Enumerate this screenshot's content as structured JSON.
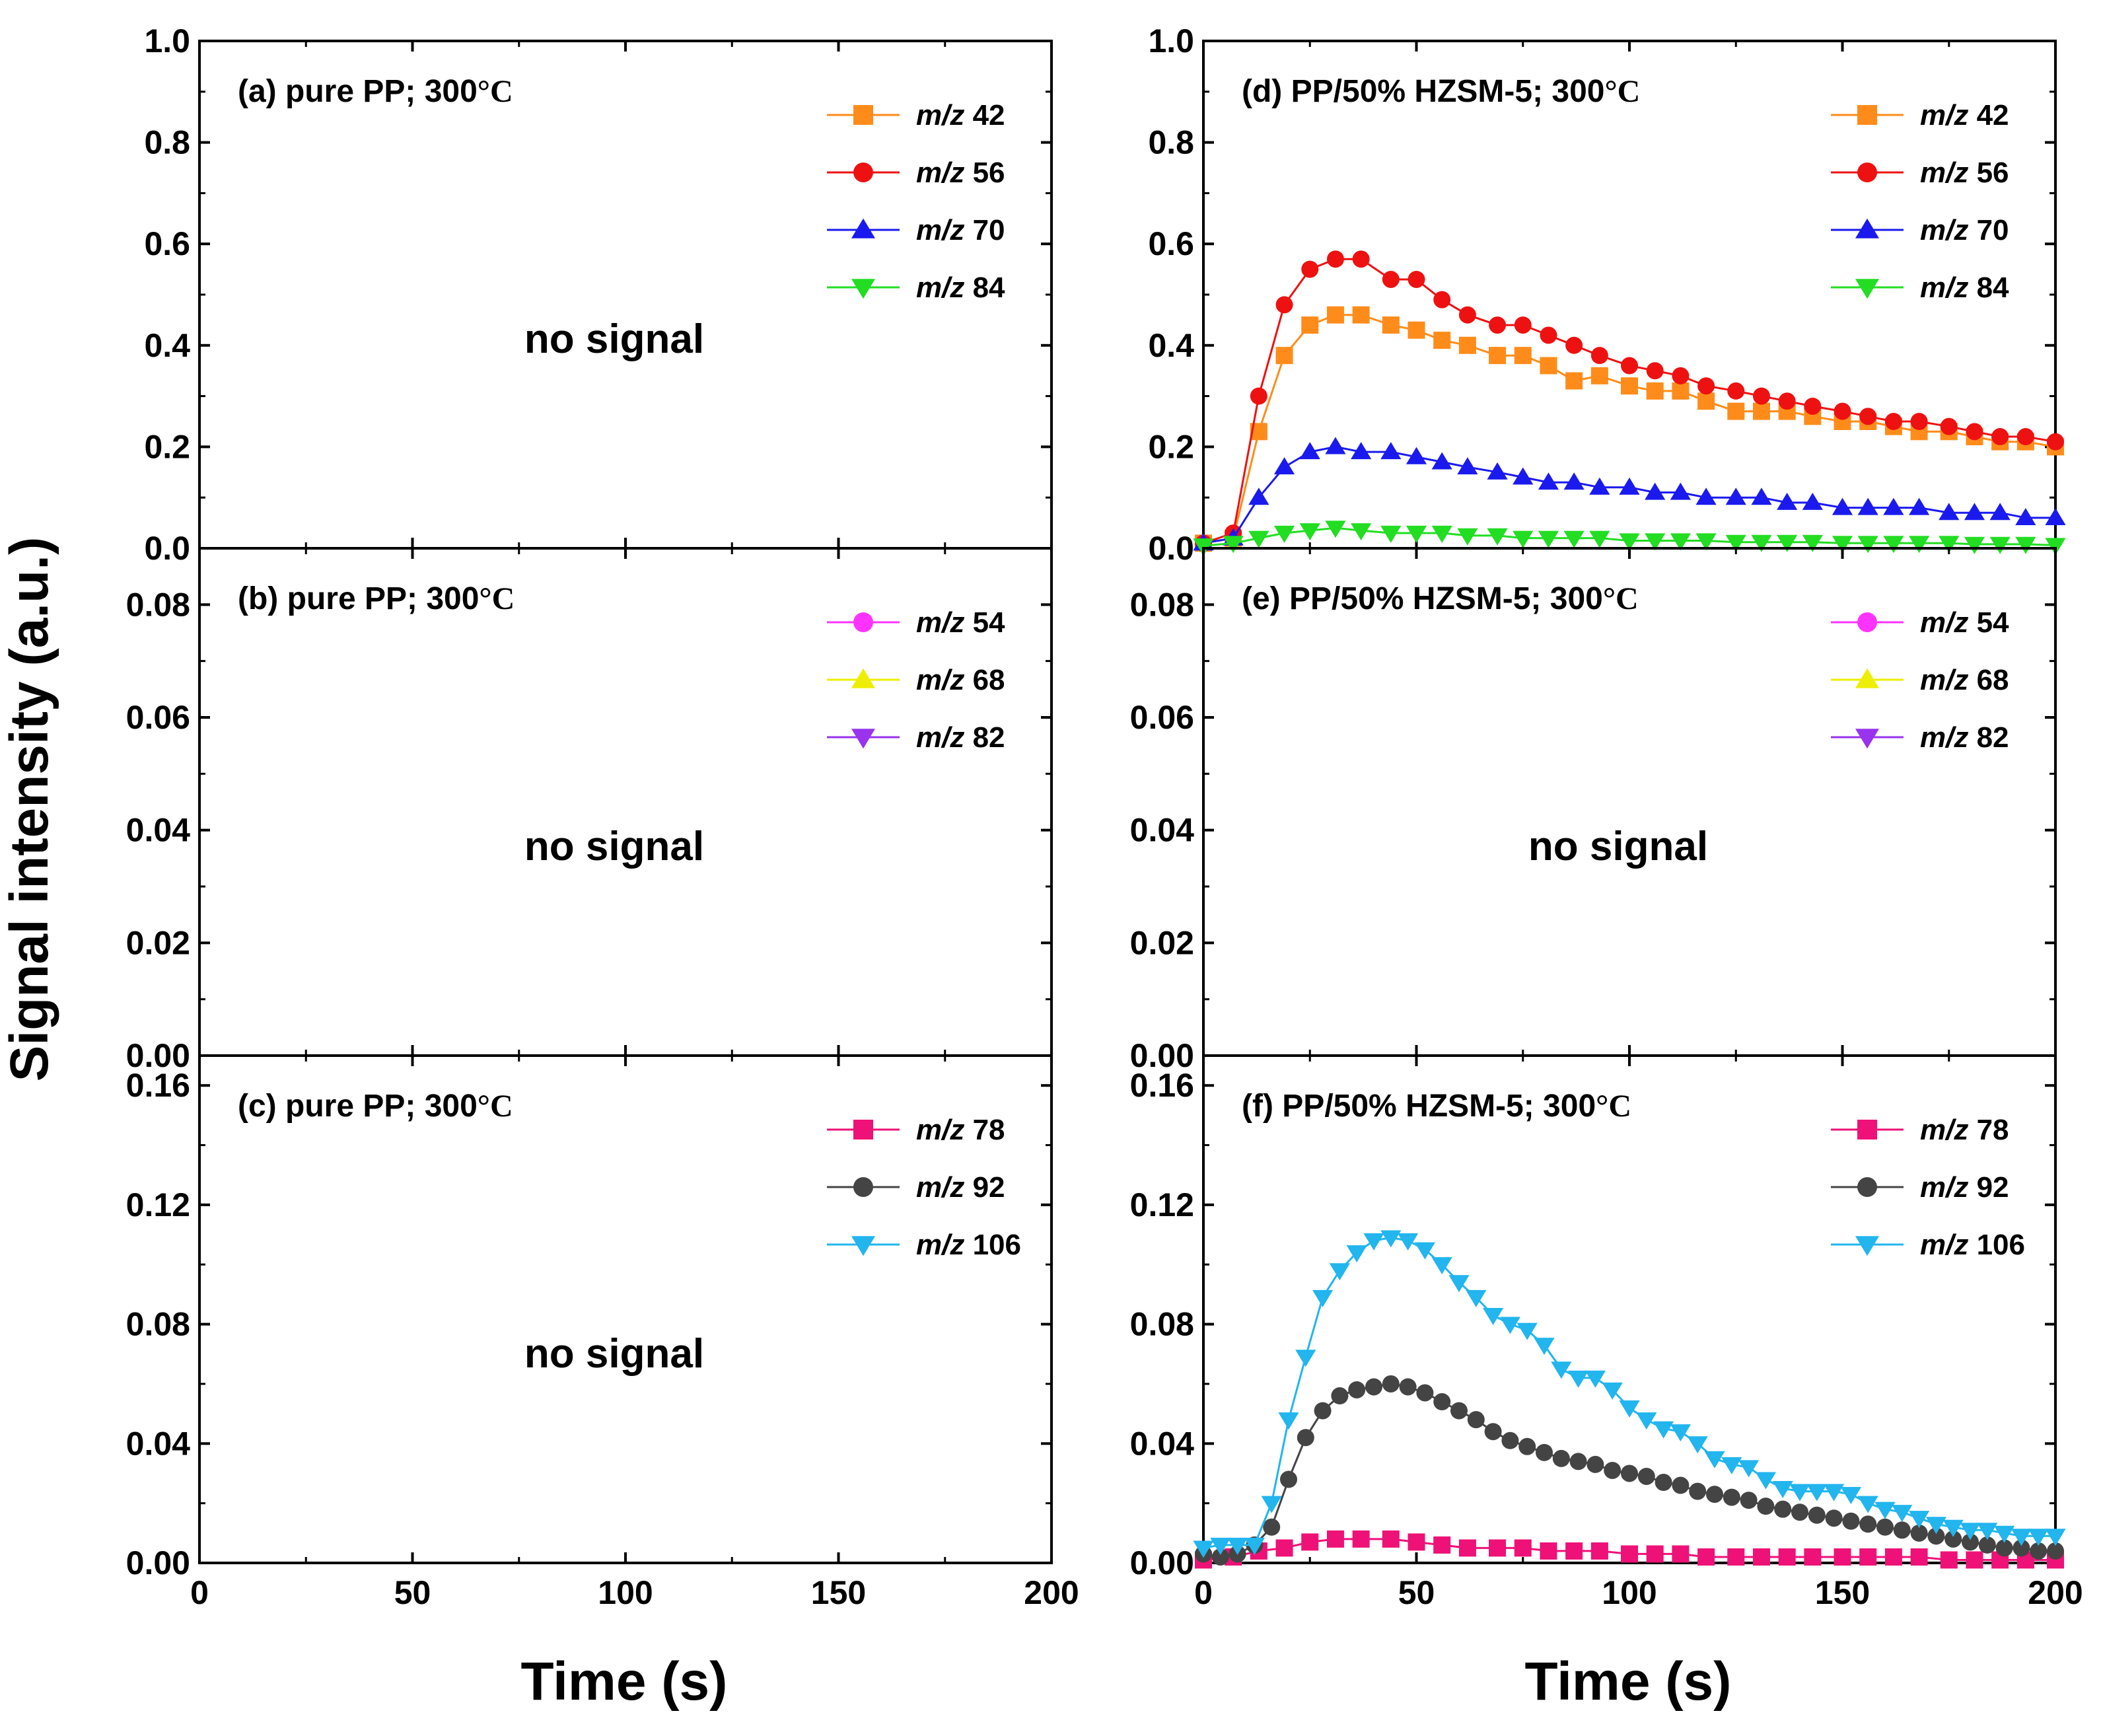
{
  "figure": {
    "ylabel": "Signal intensity (a.u.)",
    "xlabel": "Time (s)"
  },
  "chart_data": [
    {
      "id": "a",
      "type": "line",
      "title": "(a) pure PP; 300°C",
      "xlim": [
        0,
        200
      ],
      "ylim": [
        0,
        1.0
      ],
      "xticks": [
        "0",
        "50",
        "100",
        "150",
        "200"
      ],
      "yticks": [
        "0.0",
        "0.2",
        "0.4",
        "0.6",
        "0.8",
        "1.0"
      ],
      "annotation": "no signal",
      "series": [
        {
          "name": "m/z 42",
          "color": "#ff8c1a",
          "marker": "square",
          "x": [],
          "y": []
        },
        {
          "name": "m/z 56",
          "color": "#ee1111",
          "marker": "circle",
          "x": [],
          "y": []
        },
        {
          "name": "m/z 70",
          "color": "#1a1aee",
          "marker": "triangle-up",
          "x": [],
          "y": []
        },
        {
          "name": "m/z 84",
          "color": "#22dd22",
          "marker": "triangle-down",
          "x": [],
          "y": []
        }
      ]
    },
    {
      "id": "b",
      "type": "line",
      "title": "(b) pure PP; 300°C",
      "xlim": [
        0,
        200
      ],
      "ylim": [
        0,
        0.09
      ],
      "xticks": [
        "0",
        "50",
        "100",
        "150",
        "200"
      ],
      "yticks": [
        "0.00",
        "0.02",
        "0.04",
        "0.06",
        "0.08"
      ],
      "annotation": "no signal",
      "series": [
        {
          "name": "m/z 54",
          "color": "#ff33ff",
          "marker": "circle",
          "x": [],
          "y": []
        },
        {
          "name": "m/z 68",
          "color": "#eeee00",
          "marker": "triangle-up",
          "x": [],
          "y": []
        },
        {
          "name": "m/z 82",
          "color": "#9933ee",
          "marker": "triangle-down",
          "x": [],
          "y": []
        }
      ]
    },
    {
      "id": "c",
      "type": "line",
      "title": "(c) pure PP; 300°C",
      "xlim": [
        0,
        200
      ],
      "ylim": [
        0,
        0.17
      ],
      "xticks": [
        "0",
        "50",
        "100",
        "150",
        "200"
      ],
      "yticks": [
        "0.00",
        "0.04",
        "0.08",
        "0.12",
        "0.16"
      ],
      "annotation": "no signal",
      "series": [
        {
          "name": "m/z 78",
          "color": "#ee1177",
          "marker": "square",
          "x": [],
          "y": []
        },
        {
          "name": "m/z 92",
          "color": "#444444",
          "marker": "circle",
          "x": [],
          "y": []
        },
        {
          "name": "m/z 106",
          "color": "#22b5ee",
          "marker": "triangle-down",
          "x": [],
          "y": []
        }
      ]
    },
    {
      "id": "d",
      "type": "line",
      "title": "(d) PP/50% HZSM-5; 300°C",
      "xlim": [
        0,
        200
      ],
      "ylim": [
        0,
        1.0
      ],
      "xticks": [
        "0",
        "50",
        "100",
        "150",
        "200"
      ],
      "yticks": [
        "0.0",
        "0.2",
        "0.4",
        "0.6",
        "0.8",
        "1.0"
      ],
      "annotation": "",
      "series": [
        {
          "name": "m/z 42",
          "color": "#ff8c1a",
          "marker": "square",
          "x": [
            0,
            7,
            13,
            19,
            25,
            31,
            37,
            44,
            50,
            56,
            62,
            69,
            75,
            81,
            87,
            93,
            100,
            106,
            112,
            118,
            125,
            131,
            137,
            143,
            150,
            156,
            162,
            168,
            175,
            181,
            187,
            193,
            200
          ],
          "y": [
            0.01,
            0.02,
            0.23,
            0.38,
            0.44,
            0.46,
            0.46,
            0.44,
            0.43,
            0.41,
            0.4,
            0.38,
            0.38,
            0.36,
            0.33,
            0.34,
            0.32,
            0.31,
            0.31,
            0.29,
            0.27,
            0.27,
            0.27,
            0.26,
            0.25,
            0.25,
            0.24,
            0.23,
            0.23,
            0.22,
            0.21,
            0.21,
            0.2
          ]
        },
        {
          "name": "m/z 56",
          "color": "#ee1111",
          "marker": "circle",
          "x": [
            0,
            7,
            13,
            19,
            25,
            31,
            37,
            44,
            50,
            56,
            62,
            69,
            75,
            81,
            87,
            93,
            100,
            106,
            112,
            118,
            125,
            131,
            137,
            143,
            150,
            156,
            162,
            168,
            175,
            181,
            187,
            193,
            200
          ],
          "y": [
            0.01,
            0.03,
            0.3,
            0.48,
            0.55,
            0.57,
            0.57,
            0.53,
            0.53,
            0.49,
            0.46,
            0.44,
            0.44,
            0.42,
            0.4,
            0.38,
            0.36,
            0.35,
            0.34,
            0.32,
            0.31,
            0.3,
            0.29,
            0.28,
            0.27,
            0.26,
            0.25,
            0.25,
            0.24,
            0.23,
            0.22,
            0.22,
            0.21
          ]
        },
        {
          "name": "m/z 70",
          "color": "#1a1aee",
          "marker": "triangle-up",
          "x": [
            0,
            7,
            13,
            19,
            25,
            31,
            37,
            44,
            50,
            56,
            62,
            69,
            75,
            81,
            87,
            93,
            100,
            106,
            112,
            118,
            125,
            131,
            137,
            143,
            150,
            156,
            162,
            168,
            175,
            181,
            187,
            193,
            200
          ],
          "y": [
            0.01,
            0.02,
            0.1,
            0.16,
            0.19,
            0.2,
            0.19,
            0.19,
            0.18,
            0.17,
            0.16,
            0.15,
            0.14,
            0.13,
            0.13,
            0.12,
            0.12,
            0.11,
            0.11,
            0.1,
            0.1,
            0.1,
            0.09,
            0.09,
            0.08,
            0.08,
            0.08,
            0.08,
            0.07,
            0.07,
            0.07,
            0.06,
            0.06
          ]
        },
        {
          "name": "m/z 84",
          "color": "#22dd22",
          "marker": "triangle-down",
          "x": [
            0,
            7,
            13,
            19,
            25,
            31,
            37,
            44,
            50,
            56,
            62,
            69,
            75,
            81,
            87,
            93,
            100,
            106,
            112,
            118,
            125,
            131,
            137,
            143,
            150,
            156,
            162,
            168,
            175,
            181,
            187,
            193,
            200
          ],
          "y": [
            0.005,
            0.01,
            0.02,
            0.03,
            0.035,
            0.04,
            0.035,
            0.03,
            0.03,
            0.03,
            0.025,
            0.025,
            0.02,
            0.02,
            0.02,
            0.02,
            0.015,
            0.015,
            0.015,
            0.015,
            0.012,
            0.012,
            0.012,
            0.012,
            0.01,
            0.01,
            0.01,
            0.01,
            0.01,
            0.008,
            0.008,
            0.008,
            0.006
          ]
        }
      ]
    },
    {
      "id": "e",
      "type": "line",
      "title": "(e) PP/50% HZSM-5; 300°C",
      "xlim": [
        0,
        200
      ],
      "ylim": [
        0,
        0.09
      ],
      "xticks": [
        "0",
        "50",
        "100",
        "150",
        "200"
      ],
      "yticks": [
        "0.00",
        "0.02",
        "0.04",
        "0.06",
        "0.08"
      ],
      "annotation": "no signal",
      "series": [
        {
          "name": "m/z 54",
          "color": "#ff33ff",
          "marker": "circle",
          "x": [],
          "y": []
        },
        {
          "name": "m/z 68",
          "color": "#eeee00",
          "marker": "triangle-up",
          "x": [],
          "y": []
        },
        {
          "name": "m/z 82",
          "color": "#9933ee",
          "marker": "triangle-down",
          "x": [],
          "y": []
        }
      ]
    },
    {
      "id": "f",
      "type": "line",
      "title": "(f) PP/50% HZSM-5; 300°C",
      "xlim": [
        0,
        200
      ],
      "ylim": [
        0,
        0.17
      ],
      "xticks": [
        "0",
        "50",
        "100",
        "150",
        "200"
      ],
      "yticks": [
        "0.00",
        "0.04",
        "0.08",
        "0.12",
        "0.16"
      ],
      "annotation": "",
      "series": [
        {
          "name": "m/z 78",
          "color": "#ee1177",
          "marker": "square",
          "x": [
            0,
            7,
            13,
            19,
            25,
            31,
            37,
            44,
            50,
            56,
            62,
            69,
            75,
            81,
            87,
            93,
            100,
            106,
            112,
            118,
            125,
            131,
            137,
            143,
            150,
            156,
            162,
            168,
            175,
            181,
            187,
            193,
            200
          ],
          "y": [
            0.001,
            0.002,
            0.004,
            0.005,
            0.007,
            0.008,
            0.008,
            0.008,
            0.007,
            0.006,
            0.005,
            0.005,
            0.005,
            0.004,
            0.004,
            0.004,
            0.003,
            0.003,
            0.003,
            0.002,
            0.002,
            0.002,
            0.002,
            0.002,
            0.002,
            0.002,
            0.002,
            0.002,
            0.001,
            0.001,
            0.001,
            0.001,
            0.001
          ]
        },
        {
          "name": "m/z 92",
          "color": "#444444",
          "marker": "circle",
          "x": [
            0,
            4,
            8,
            12,
            16,
            20,
            24,
            28,
            32,
            36,
            40,
            44,
            48,
            52,
            56,
            60,
            64,
            68,
            72,
            76,
            80,
            84,
            88,
            92,
            96,
            100,
            104,
            108,
            112,
            116,
            120,
            124,
            128,
            132,
            136,
            140,
            144,
            148,
            152,
            156,
            160,
            164,
            168,
            172,
            176,
            180,
            184,
            188,
            192,
            196,
            200
          ],
          "y": [
            0.003,
            0.002,
            0.003,
            0.006,
            0.012,
            0.028,
            0.042,
            0.051,
            0.056,
            0.058,
            0.059,
            0.06,
            0.059,
            0.057,
            0.054,
            0.051,
            0.048,
            0.044,
            0.041,
            0.039,
            0.037,
            0.035,
            0.034,
            0.033,
            0.031,
            0.03,
            0.029,
            0.027,
            0.026,
            0.024,
            0.023,
            0.022,
            0.021,
            0.019,
            0.018,
            0.017,
            0.016,
            0.015,
            0.014,
            0.013,
            0.012,
            0.011,
            0.01,
            0.009,
            0.008,
            0.007,
            0.006,
            0.005,
            0.005,
            0.004,
            0.004
          ]
        },
        {
          "name": "m/z 106",
          "color": "#22b5ee",
          "marker": "triangle-down",
          "x": [
            0,
            4,
            8,
            12,
            16,
            20,
            24,
            28,
            32,
            36,
            40,
            44,
            48,
            52,
            56,
            60,
            64,
            68,
            72,
            76,
            80,
            84,
            88,
            92,
            96,
            100,
            104,
            108,
            112,
            116,
            120,
            124,
            128,
            132,
            136,
            140,
            144,
            148,
            152,
            156,
            160,
            164,
            168,
            172,
            176,
            180,
            184,
            188,
            192,
            196,
            200
          ],
          "y": [
            0.005,
            0.006,
            0.006,
            0.006,
            0.02,
            0.048,
            0.069,
            0.089,
            0.098,
            0.104,
            0.108,
            0.109,
            0.108,
            0.105,
            0.1,
            0.094,
            0.089,
            0.083,
            0.08,
            0.078,
            0.073,
            0.065,
            0.062,
            0.062,
            0.058,
            0.052,
            0.048,
            0.045,
            0.044,
            0.04,
            0.035,
            0.033,
            0.032,
            0.028,
            0.025,
            0.024,
            0.024,
            0.024,
            0.023,
            0.02,
            0.018,
            0.017,
            0.015,
            0.013,
            0.012,
            0.011,
            0.011,
            0.01,
            0.009,
            0.009,
            0.009
          ]
        }
      ]
    }
  ]
}
